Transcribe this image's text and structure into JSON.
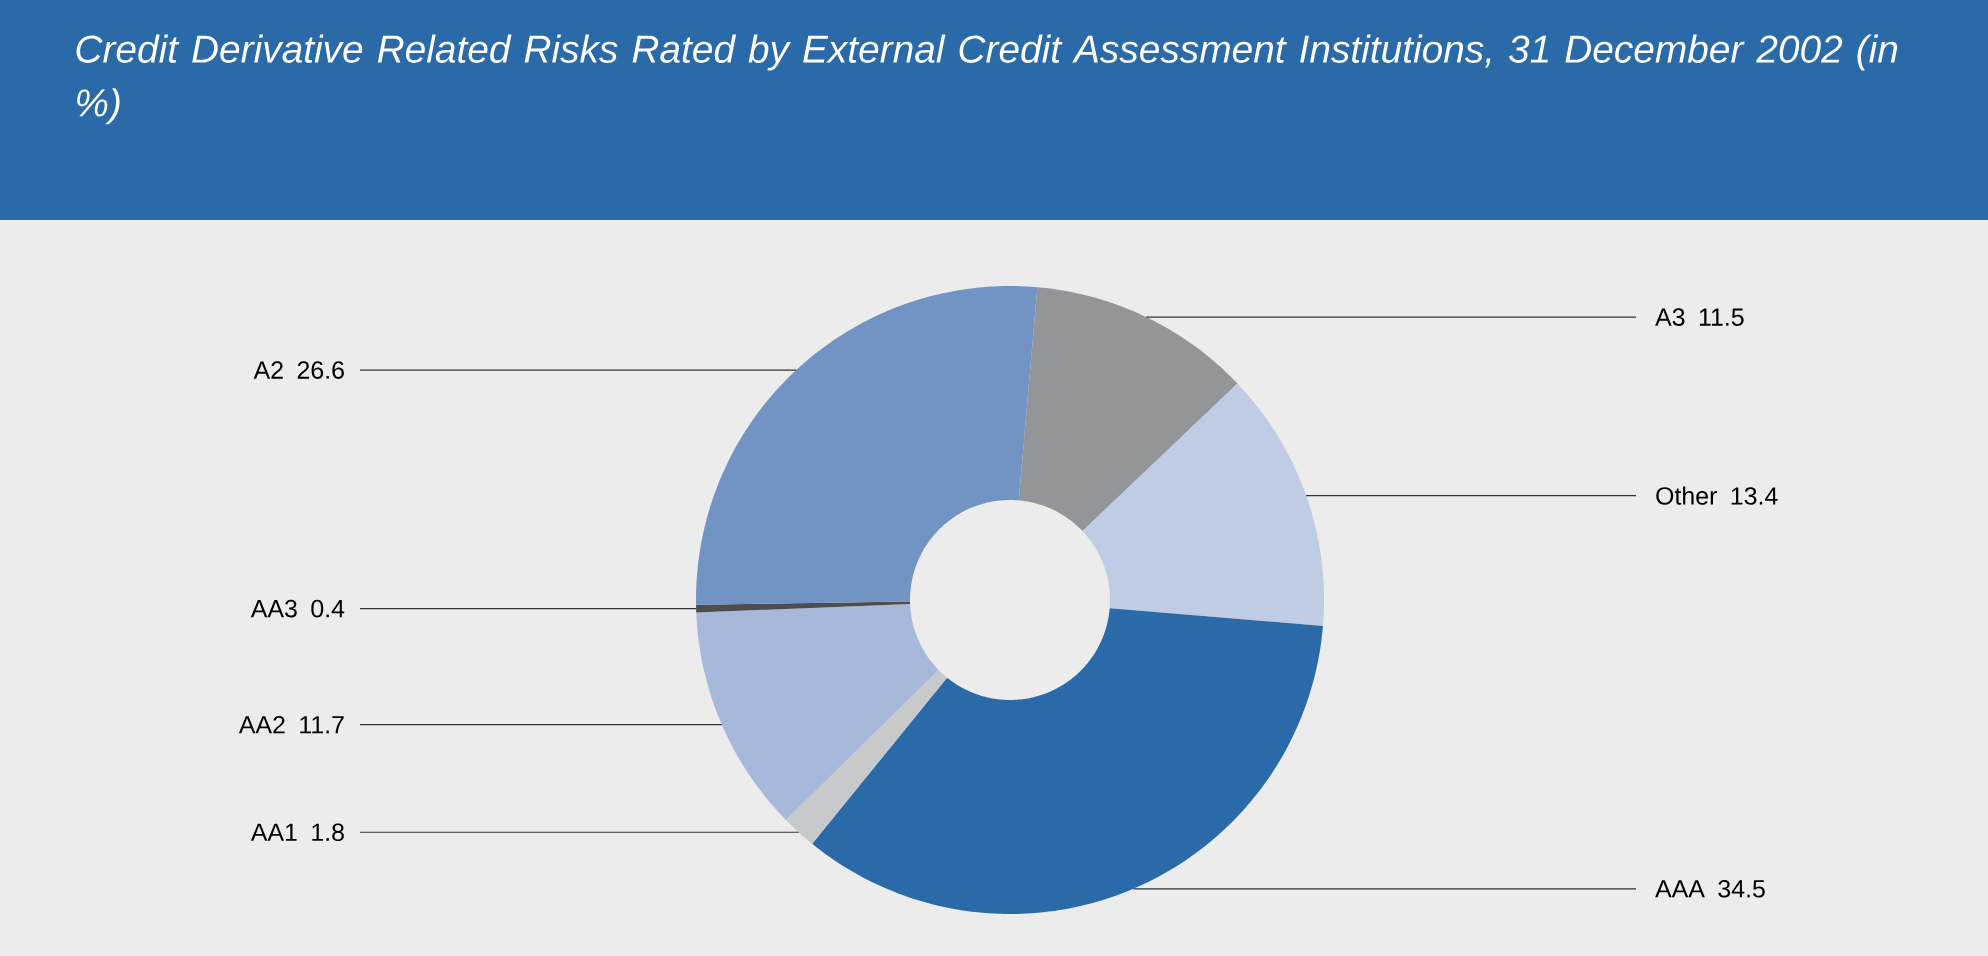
{
  "chart_data": {
    "type": "donut",
    "title": "Credit Derivative Related Risks Rated by External Credit Assessment Institutions, 31 December 2002 (in %)",
    "categories": [
      "A3",
      "Other",
      "AAA",
      "AA1",
      "AA2",
      "AA3",
      "A2"
    ],
    "values": [
      11.5,
      13.4,
      34.5,
      1.8,
      11.7,
      0.4,
      26.6
    ],
    "colors": [
      "#939598",
      "#c0cbe4",
      "#2a6aa8",
      "#c8c9cb",
      "#a8b8da",
      "#4d4d4f",
      "#7294c4"
    ],
    "data_labels": true
  }
}
